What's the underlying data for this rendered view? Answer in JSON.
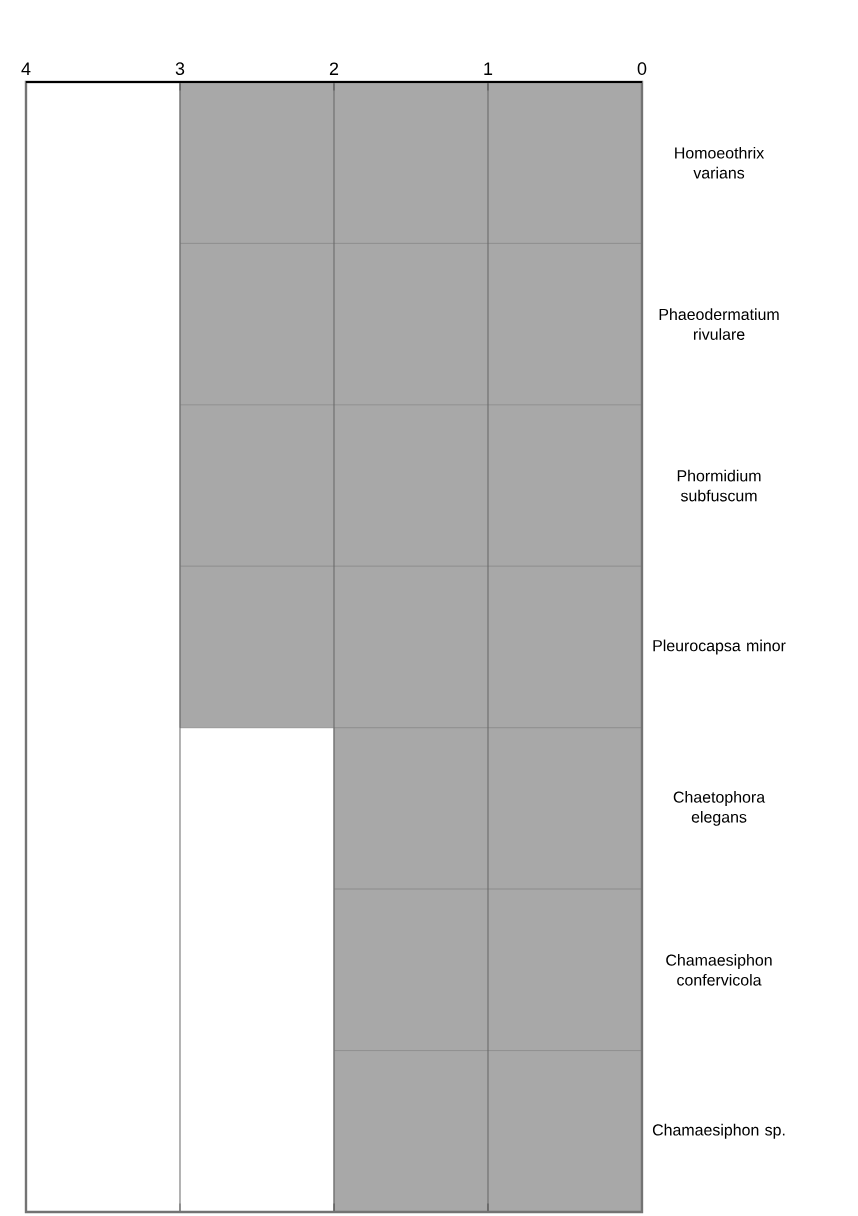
{
  "chart_data": {
    "type": "bar",
    "orientation": "horizontal",
    "categories": [
      "Homoeothrix varians",
      "Phaeodermatium rivulare",
      "Phormidium subfuscum",
      "Pleurocapsa minor",
      "Chaetophora elegans",
      "Chamaesiphon confervicola",
      "Chamaesiphon sp."
    ],
    "values": [
      3,
      3,
      3,
      3,
      2,
      2,
      2
    ],
    "color": "#a8a8a8",
    "xlim": [
      4,
      0
    ],
    "xticks": [
      4,
      3,
      2,
      1,
      0
    ],
    "grid": "x"
  }
}
